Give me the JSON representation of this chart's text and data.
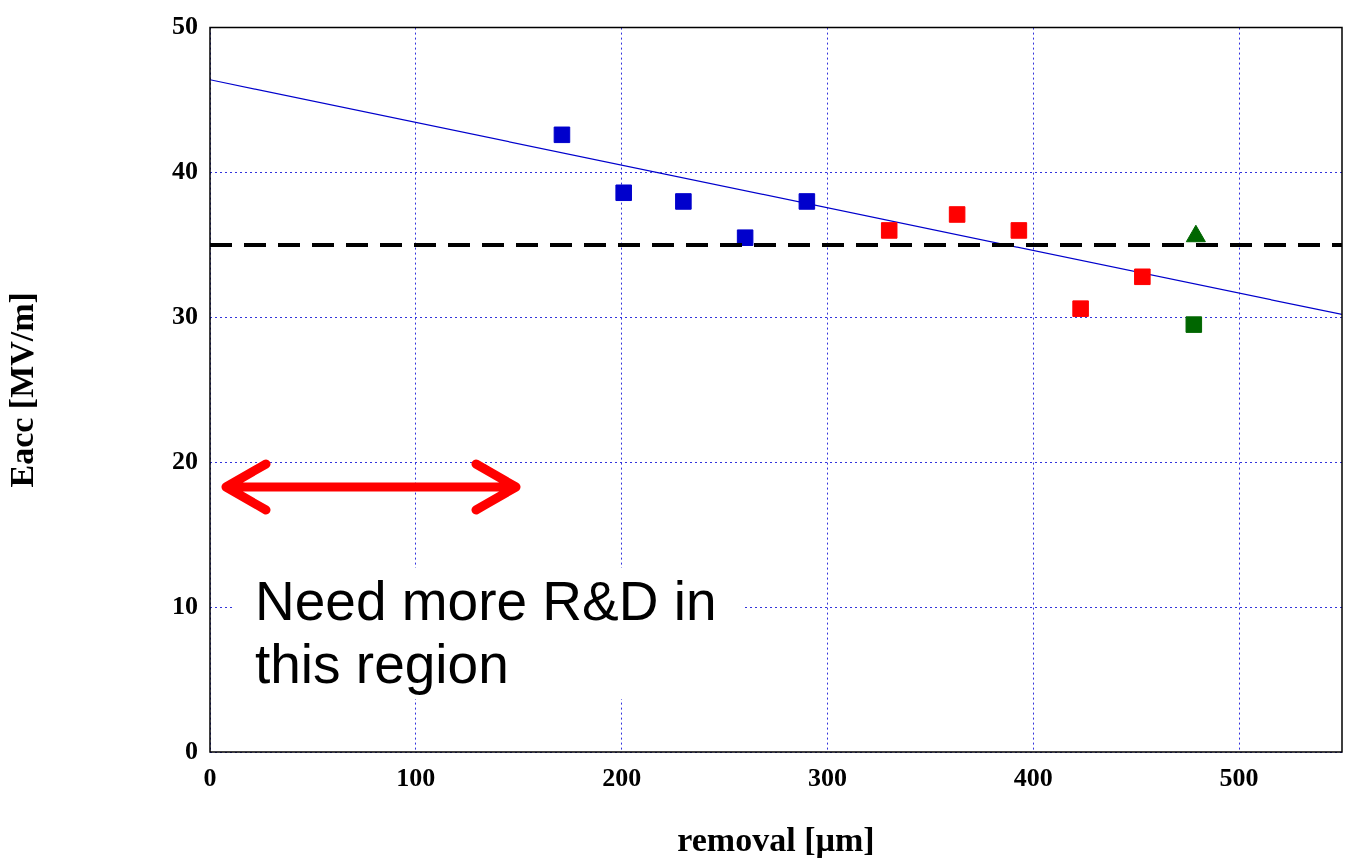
{
  "chart_data": {
    "type": "scatter",
    "xlabel": "removal [µm]",
    "ylabel": "Eacc [MV/m]",
    "xlim": [
      0,
      550
    ],
    "xticks": [
      0,
      100,
      200,
      300,
      400,
      500
    ],
    "ylim": [
      0,
      50
    ],
    "yticks": [
      0,
      10,
      20,
      30,
      40,
      50
    ],
    "grid": true,
    "series": [
      {
        "color": "#0000cc",
        "marker": "square",
        "x": [
          171,
          201,
          230,
          260,
          290
        ],
        "values": [
          42.6,
          38.6,
          38.0,
          35.5,
          38.0
        ]
      },
      {
        "color": "#ff0000",
        "marker": "square",
        "x": [
          330,
          363,
          393,
          423,
          453
        ],
        "values": [
          36.0,
          37.1,
          36.0,
          30.6,
          32.8
        ]
      },
      {
        "color": "#006600",
        "marker": "triangle",
        "x": [
          479
        ],
        "values": [
          35.6
        ]
      },
      {
        "color": "#006600",
        "marker": "square",
        "x": [
          478
        ],
        "values": [
          29.5
        ]
      },
      {
        "type": "line",
        "color": "#0000cc",
        "marker": "none",
        "x": [
          0,
          550
        ],
        "values": [
          46.4,
          30.2
        ]
      }
    ],
    "ref_lines": [
      {
        "axis": "y",
        "value": 35,
        "color": "#000000",
        "line_style": "dashed"
      }
    ],
    "annotations": [
      "Need more R&D in this region"
    ]
  }
}
